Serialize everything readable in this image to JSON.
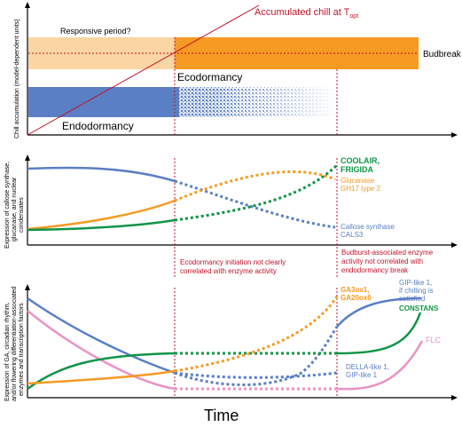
{
  "colors": {
    "axis": "#000000",
    "red": "#c0122b",
    "orange": "#f59a23",
    "light_orange": "#fbd5a4",
    "blue": "#5b7fc4",
    "green": "#109447",
    "pink": "#e993c4"
  },
  "panel_top": {
    "y_axis_label": "Chill accumulation (model-dependent units)",
    "responsive_label": "Responsive period?",
    "chill_label": "Accumulated chill at T",
    "chill_label_sub": "opt",
    "budbreak_label": "Budbreak",
    "ecodormancy_label": "Ecodormancy",
    "endodormancy_label": "Endodormancy"
  },
  "panel_middle": {
    "y_axis_label_1": "Expression of callose synthase,",
    "y_axis_label_2": "glucanase, and nuclear",
    "y_axis_label_3": "condensates",
    "coolair_1": "COOLAIR,",
    "coolair_2": "FRIGIDA",
    "glucanase_1": "Glucanase",
    "glucanase_2": "GH17 type 2",
    "callose_1": "Callose synthase",
    "callose_2": "CALS3",
    "note_left_1": "Ecodormancy initiation not clearly",
    "note_left_2": "correlated with enzyme activity",
    "note_right_1": "Budburst-associated enzyme",
    "note_right_2": "activity not correlated with",
    "note_right_3": "endodormancy break"
  },
  "panel_bottom": {
    "y_axis_label_1": "Expression of GA, circadian rhythm,",
    "y_axis_label_2": "and/or flowering differentiation-associated",
    "y_axis_label_3": "enzymes and transcription factors",
    "ga_1": "GA3ox1,",
    "ga_2": "GA20ox6",
    "gip_1": "GIP-like 1,",
    "gip_2": "if chilling is",
    "gip_3": "satisfied",
    "constans": "CONSTANS",
    "flc": "FLC",
    "della_1": "DELLA-like 1,",
    "della_2": "GIP-like 1"
  },
  "x_axis_label": "Time"
}
